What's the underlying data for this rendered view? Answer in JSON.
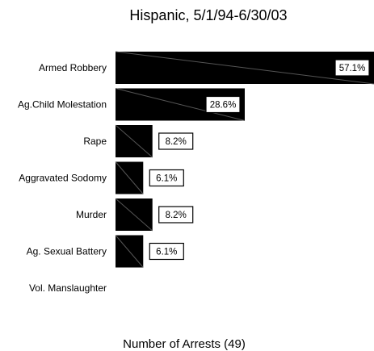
{
  "chart_data": {
    "type": "bar",
    "orientation": "horizontal",
    "title": "Hispanic, 5/1/94-6/30/03",
    "xlabel": "Number of Arrests (49)",
    "ylabel": "",
    "categories": [
      "Armed Robbery",
      "Ag.Child Molestation",
      "Rape",
      "Aggravated Sodomy",
      "Murder",
      "Ag. Sexual Battery",
      "Vol. Manslaughter"
    ],
    "values": [
      28,
      14,
      4,
      3,
      4,
      3,
      0
    ],
    "value_labels": [
      "57.1%",
      "28.6%",
      "8.2%",
      "6.1%",
      "8.2%",
      "6.1%",
      ""
    ],
    "xlim": [
      0,
      28
    ],
    "grid": false,
    "colors": {
      "bar": "#000000",
      "label_bg": "#ffffff",
      "diagonal": "#555555"
    }
  }
}
